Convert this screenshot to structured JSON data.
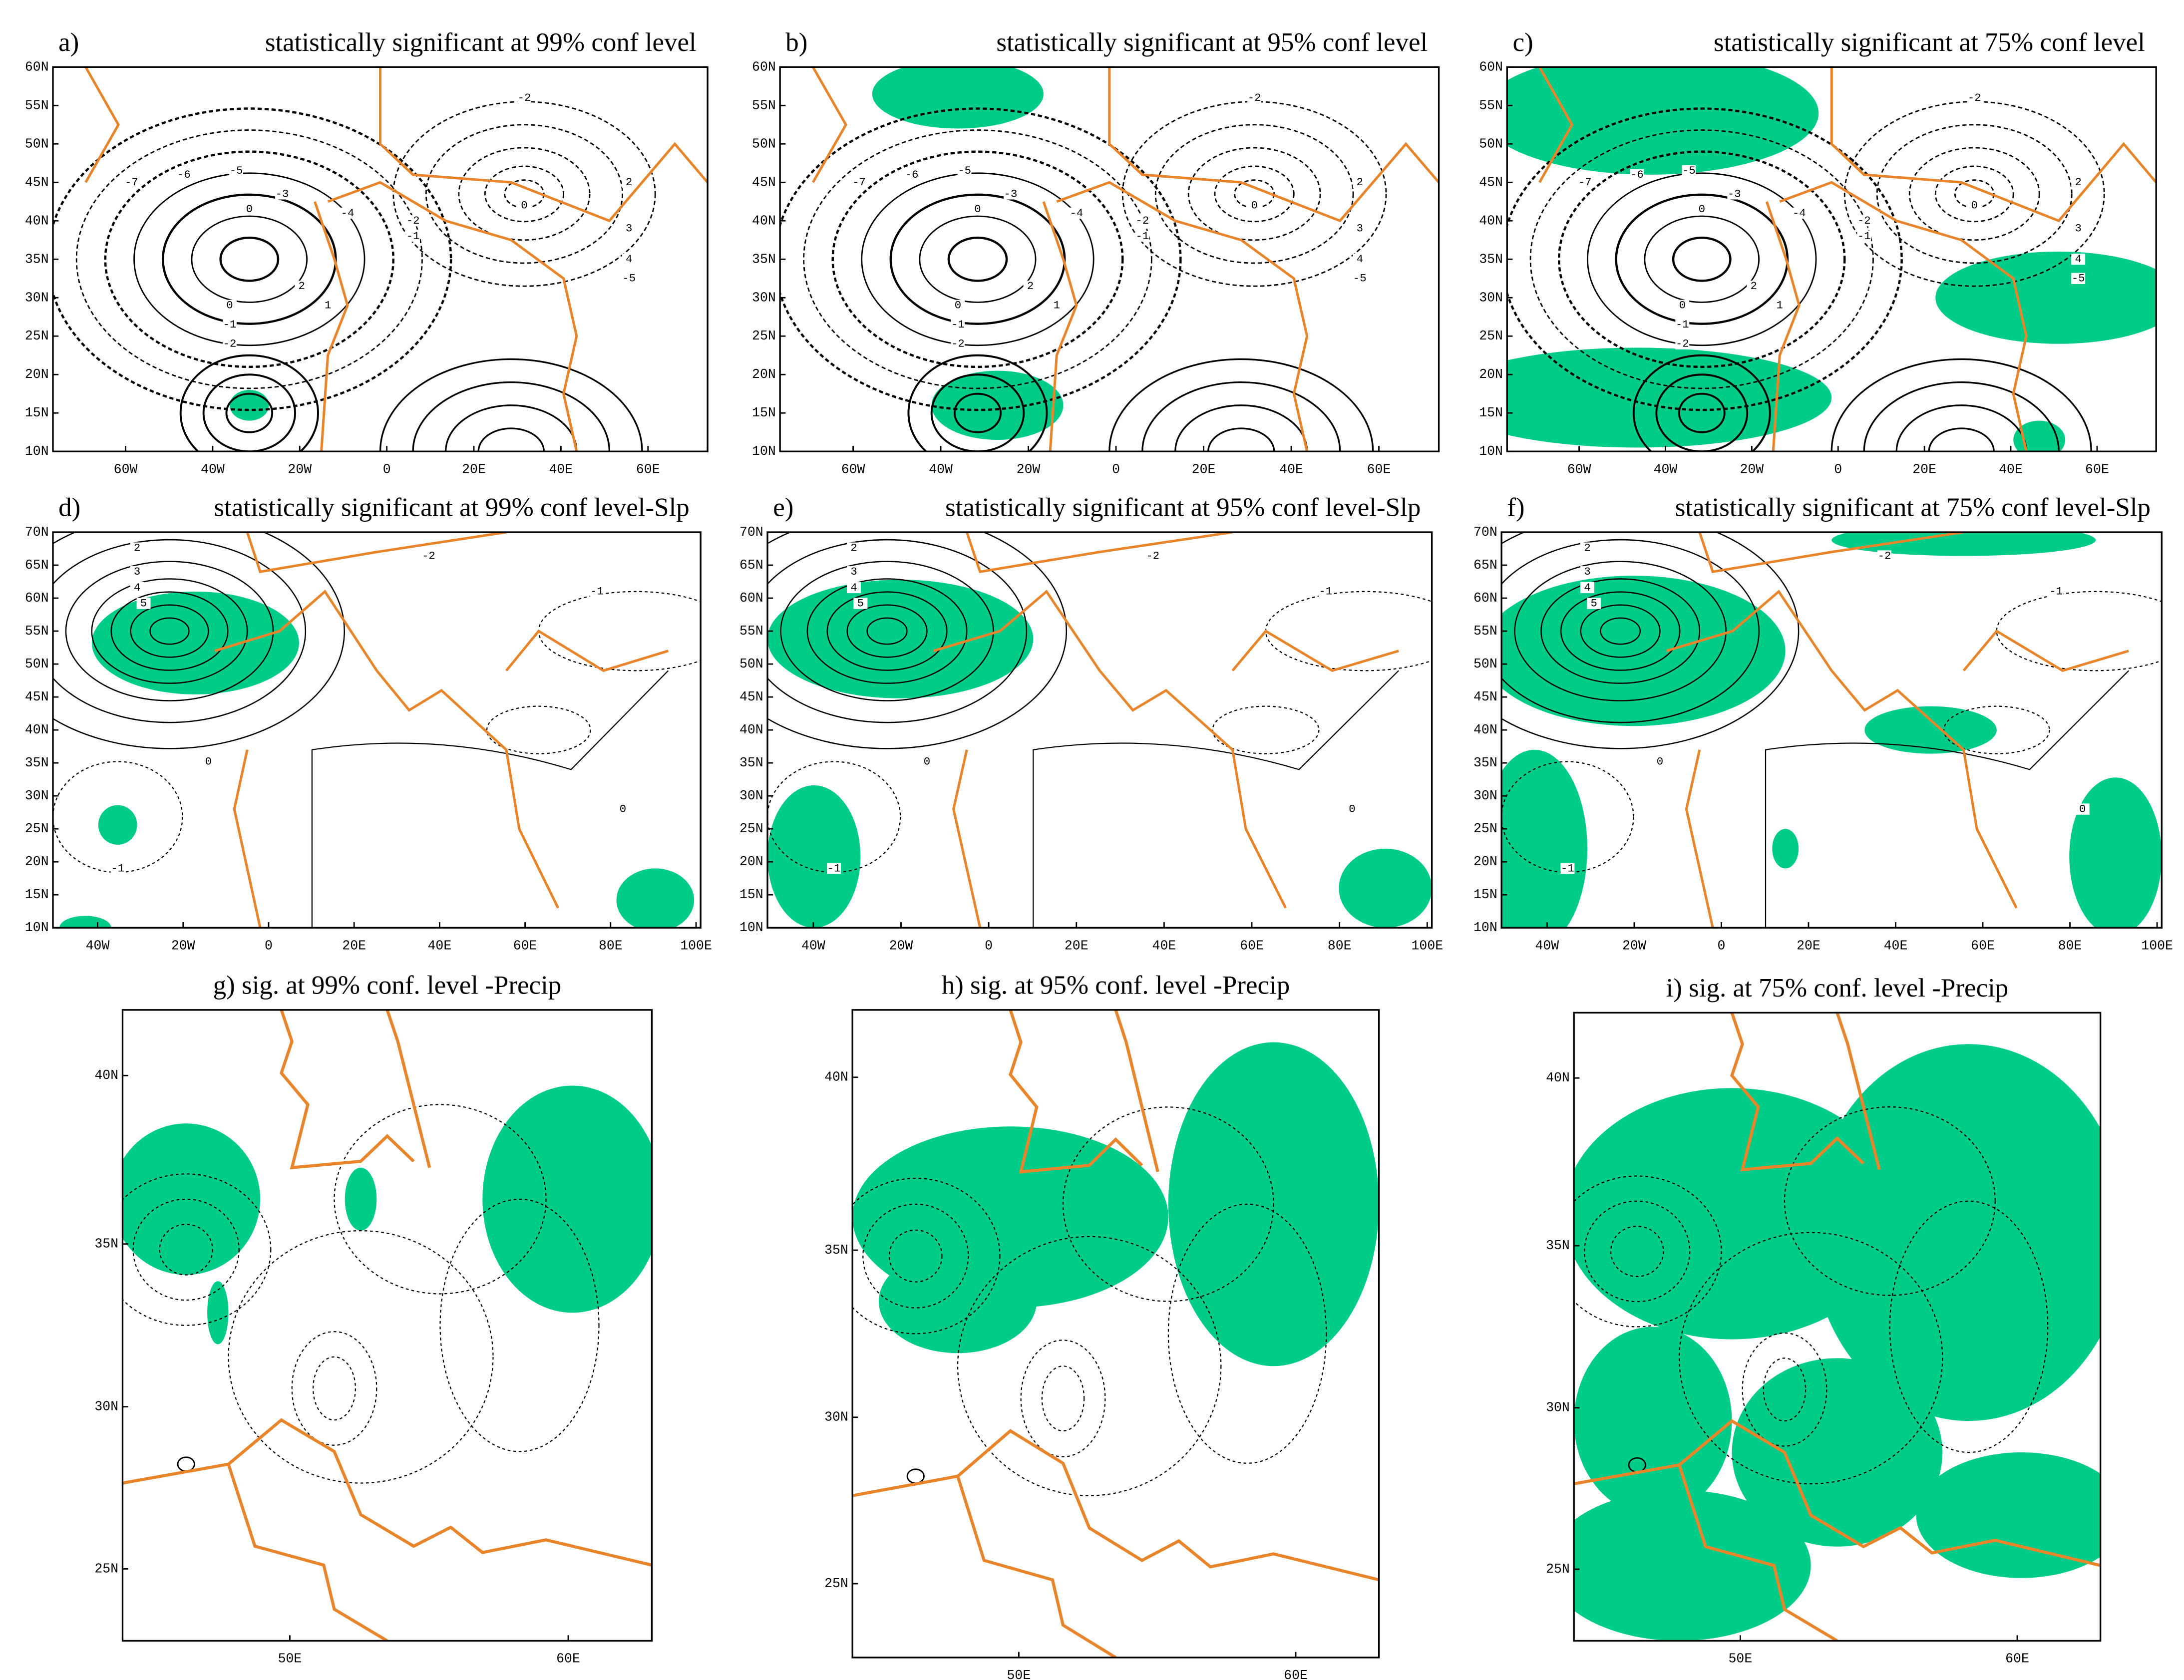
{
  "panels": [
    {
      "label": "a)",
      "title": "statistically significant at 99% conf level",
      "yticks": [
        "60N",
        "55N",
        "50N",
        "45N",
        "40N",
        "35N",
        "30N",
        "25N",
        "20N",
        "15N",
        "10N"
      ],
      "xticks": [
        "60W",
        "40W",
        "20W",
        "0",
        "20E",
        "40E",
        "60E"
      ],
      "contour_labels": [
        "-7",
        "-6",
        "-5",
        "-4",
        "-3",
        "0",
        "2",
        "1",
        "0",
        "-1",
        "-2",
        "-2",
        "-1",
        "0",
        "-2",
        "2",
        "3",
        "4",
        "-5"
      ]
    },
    {
      "label": "b)",
      "title": "statistically significant at 95% conf level",
      "yticks": [
        "60N",
        "55N",
        "50N",
        "45N",
        "40N",
        "35N",
        "30N",
        "25N",
        "20N",
        "15N",
        "10N"
      ],
      "xticks": [
        "60W",
        "40W",
        "20W",
        "0",
        "20E",
        "40E",
        "60E"
      ],
      "contour_labels": [
        "-7",
        "-6",
        "-5",
        "-4",
        "-3",
        "0",
        "2",
        "1",
        "0",
        "-1",
        "-2",
        "-2",
        "-1",
        "0",
        "-2",
        "2",
        "3",
        "4",
        "-5"
      ]
    },
    {
      "label": "c)",
      "title": "statistically significant at 75% conf level",
      "yticks": [
        "60N",
        "55N",
        "50N",
        "45N",
        "40N",
        "35N",
        "30N",
        "25N",
        "20N",
        "15N",
        "10N"
      ],
      "xticks": [
        "60W",
        "40W",
        "20W",
        "0",
        "20E",
        "40E",
        "60E"
      ],
      "contour_labels": [
        "-7",
        "-6",
        "-5",
        "-4",
        "-3",
        "0",
        "2",
        "1",
        "0",
        "-1",
        "-2",
        "-2",
        "-1",
        "0",
        "-2",
        "2",
        "3",
        "4",
        "-5"
      ]
    },
    {
      "label": "d)",
      "title": "statistically significant at 99% conf level-Slp",
      "yticks": [
        "70N",
        "65N",
        "60N",
        "55N",
        "50N",
        "45N",
        "40N",
        "35N",
        "30N",
        "25N",
        "20N",
        "15N",
        "10N"
      ],
      "xticks": [
        "40W",
        "20W",
        "0",
        "20E",
        "40E",
        "60E",
        "80E",
        "100E"
      ],
      "contour_labels": [
        "2",
        "3",
        "4",
        "5",
        "-2",
        "-1",
        "0",
        "0",
        "-1"
      ]
    },
    {
      "label": "e)",
      "title": "statistically significant at 95% conf level-Slp",
      "yticks": [
        "70N",
        "65N",
        "60N",
        "55N",
        "50N",
        "45N",
        "40N",
        "35N",
        "30N",
        "25N",
        "20N",
        "15N",
        "10N"
      ],
      "xticks": [
        "40W",
        "20W",
        "0",
        "20E",
        "40E",
        "60E",
        "80E",
        "100E"
      ],
      "contour_labels": [
        "2",
        "3",
        "4",
        "5",
        "-2",
        "-1",
        "0",
        "0",
        "-1"
      ]
    },
    {
      "label": "f)",
      "title": "statistically significant at 75% conf level-Slp",
      "yticks": [
        "70N",
        "65N",
        "60N",
        "55N",
        "50N",
        "45N",
        "40N",
        "35N",
        "30N",
        "25N",
        "20N",
        "15N",
        "10N"
      ],
      "xticks": [
        "40W",
        "20W",
        "0",
        "20E",
        "40E",
        "60E",
        "80E",
        "100E"
      ],
      "contour_labels": [
        "2",
        "3",
        "4",
        "5",
        "-2",
        "-1",
        "0",
        "0",
        "-1"
      ]
    },
    {
      "title": "g) sig. at 99% conf. level -Precip",
      "yticks": [
        "40N",
        "35N",
        "30N",
        "25N"
      ],
      "xticks": [
        "50E",
        "60E"
      ]
    },
    {
      "title": "h) sig. at 95% conf. level -Precip",
      "yticks": [
        "40N",
        "35N",
        "30N",
        "25N"
      ],
      "xticks": [
        "50E",
        "60E"
      ]
    },
    {
      "title": "i) sig. at 75% conf. level -Precip",
      "yticks": [
        "40N",
        "35N",
        "30N",
        "25N"
      ],
      "xticks": [
        "50E",
        "60E"
      ]
    }
  ]
}
